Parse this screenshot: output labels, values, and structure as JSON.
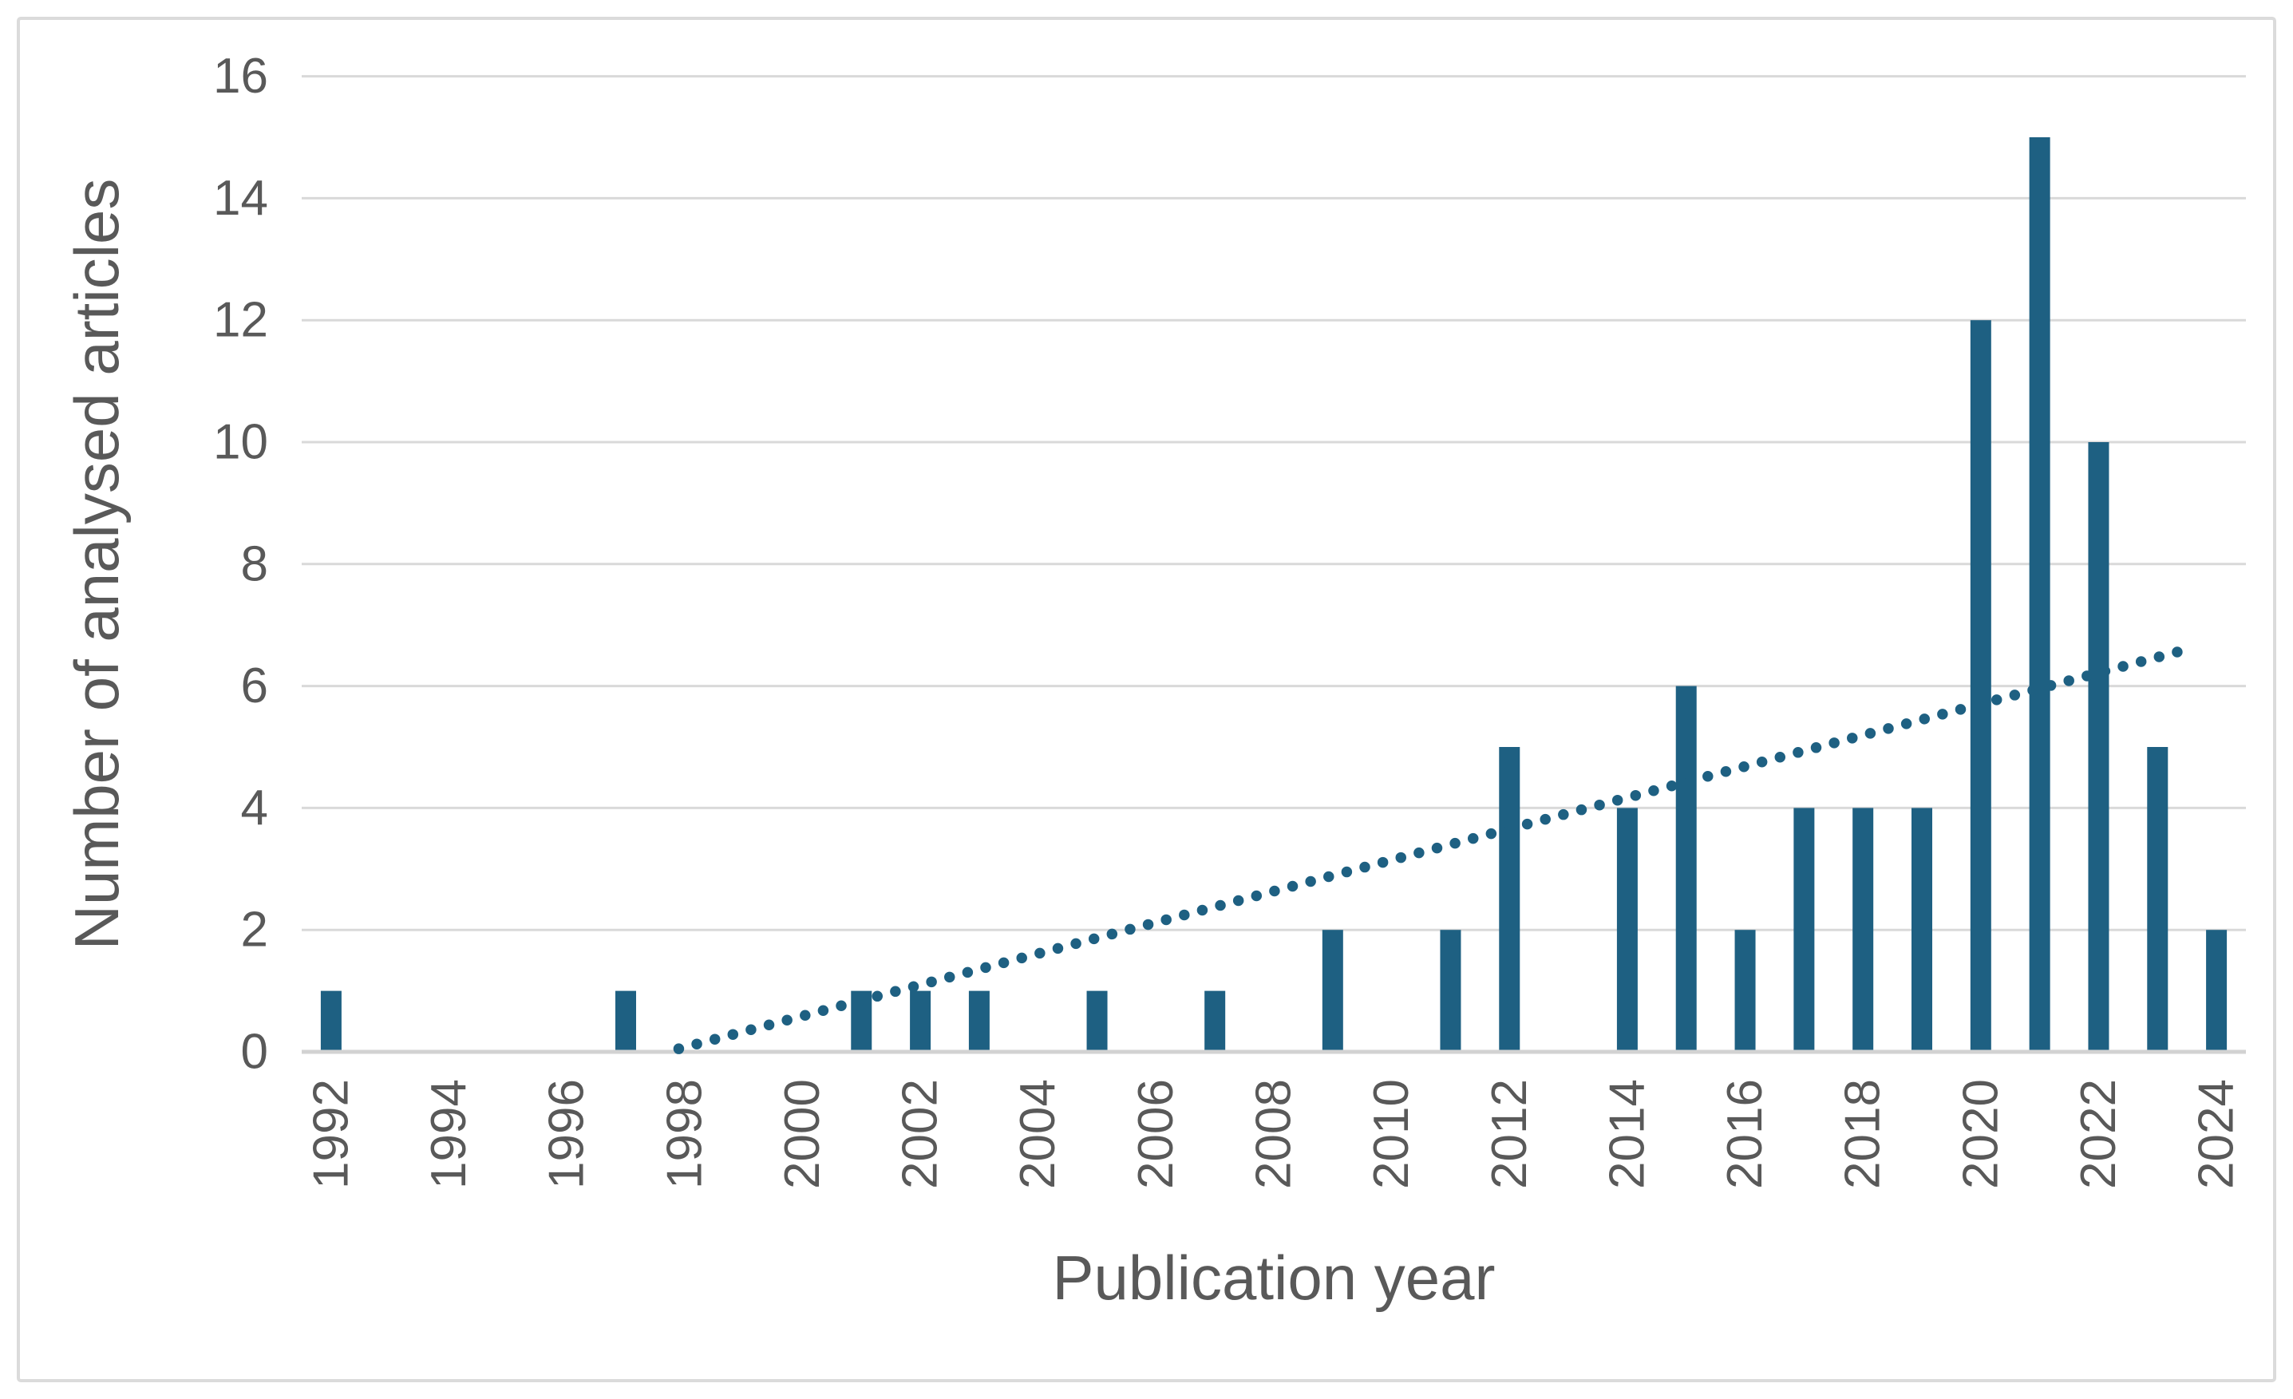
{
  "chart_data": {
    "type": "bar",
    "title": "",
    "xlabel": "Publication year",
    "ylabel": "Number of analysed articles",
    "categories": [
      1992,
      1993,
      1994,
      1995,
      1996,
      1997,
      1998,
      1999,
      2000,
      2001,
      2002,
      2003,
      2004,
      2005,
      2006,
      2007,
      2008,
      2009,
      2010,
      2011,
      2012,
      2013,
      2014,
      2015,
      2016,
      2017,
      2018,
      2019,
      2020,
      2021,
      2022,
      2023,
      2024
    ],
    "values": [
      1,
      0,
      0,
      0,
      0,
      1,
      0,
      0,
      0,
      1,
      1,
      1,
      0,
      1,
      0,
      1,
      0,
      2,
      0,
      2,
      5,
      0,
      4,
      6,
      2,
      4,
      4,
      4,
      12,
      15,
      10,
      5,
      2
    ],
    "x_tick_labels": [
      "1992",
      "1994",
      "1996",
      "1998",
      "2000",
      "2002",
      "2004",
      "2006",
      "2008",
      "2010",
      "2012",
      "2014",
      "2016",
      "2018",
      "2020",
      "2022",
      "2024"
    ],
    "x_tick_step": 2,
    "y_ticks": [
      0,
      2,
      4,
      6,
      8,
      10,
      12,
      14,
      16
    ],
    "ylim": [
      0,
      16
    ],
    "grid": "horizontal",
    "legend": "none",
    "bar_color": "#1E6082",
    "trendline_color": "#1E6082",
    "trendline_style": "dotted",
    "trendline_points": [
      {
        "year": 1997.9,
        "value": 0.05
      },
      {
        "year": 2023.5,
        "value": 6.6
      }
    ],
    "text_color": "#595959",
    "gridline_color": "#D9D9D9",
    "border_color": "#DBDBDB",
    "background_color": "#FFFFFF"
  }
}
